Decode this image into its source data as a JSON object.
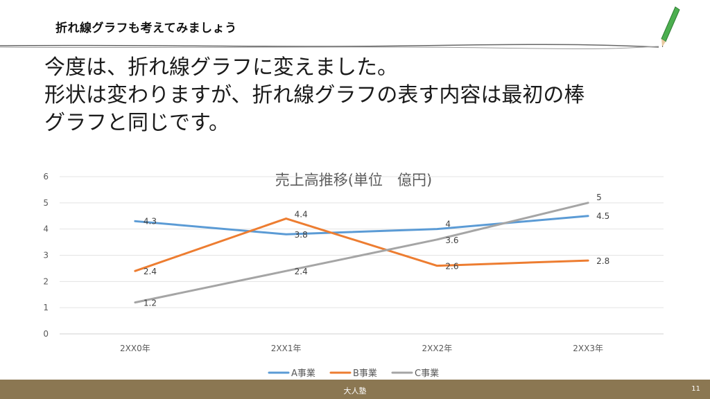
{
  "header": {
    "title": "折れ線グラフも考えてみましょう"
  },
  "body": {
    "lines": [
      "今度は、折れ線グラフに変えました。",
      "形状は変わりますが、折れ線グラフの表す内容は最初の棒",
      "グラフと同じです。"
    ]
  },
  "footer": {
    "brand": "大人塾",
    "page": "11"
  },
  "icons": {
    "pencil": "pencil-icon"
  },
  "colors": {
    "seriesA": "#5b9bd5",
    "seriesB": "#ed7d31",
    "seriesC": "#a5a5a5",
    "footer": "#8b7752"
  },
  "chart_data": {
    "type": "line",
    "title": "売上高推移(単位　億円)",
    "categories": [
      "2XX0年",
      "2XX1年",
      "2XX2年",
      "2XX3年"
    ],
    "ylim": [
      0,
      6
    ],
    "yticks": [
      0,
      1,
      2,
      3,
      4,
      5,
      6
    ],
    "grid": true,
    "legend": "bottom",
    "series": [
      {
        "name": "A事業",
        "values": [
          4.3,
          3.8,
          4,
          4.5
        ],
        "color": "#5b9bd5"
      },
      {
        "name": "B事業",
        "values": [
          2.4,
          4.4,
          2.6,
          2.8
        ],
        "color": "#ed7d31"
      },
      {
        "name": "C事業",
        "values": [
          1.2,
          2.4,
          3.6,
          5
        ],
        "color": "#a5a5a5"
      }
    ]
  }
}
